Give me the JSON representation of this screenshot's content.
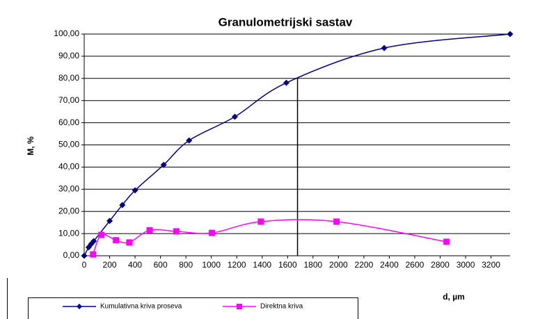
{
  "chart_data": {
    "type": "scatter",
    "title": "Granulometrijski sastav",
    "xlabel": "d, µm",
    "ylabel": "M, %",
    "xlim": [
      0,
      3350
    ],
    "ylim": [
      0,
      100
    ],
    "xticks": [
      0,
      200,
      400,
      600,
      800,
      1000,
      1200,
      1400,
      1600,
      1800,
      2000,
      2200,
      2400,
      2600,
      2800,
      3000,
      3200
    ],
    "yticks": [
      {
        "value": 0,
        "label": "0,00"
      },
      {
        "value": 10,
        "label": "10,00"
      },
      {
        "value": 20,
        "label": "20,00"
      },
      {
        "value": 30,
        "label": "30,00"
      },
      {
        "value": 40,
        "label": "40,00"
      },
      {
        "value": 50,
        "label": "50,00"
      },
      {
        "value": 60,
        "label": "60,00"
      },
      {
        "value": 70,
        "label": "70,00"
      },
      {
        "value": 80,
        "label": "80,00"
      },
      {
        "value": 90,
        "label": "90,00"
      },
      {
        "value": 100,
        "label": "100,00"
      }
    ],
    "grid": true,
    "legend": "bottom",
    "reference_line": {
      "x": 1678,
      "y": 80
    },
    "series": [
      {
        "name": "Kumulativna kriva proseva",
        "color": "#000080",
        "marker": "diamond",
        "x": [
          0,
          35,
          55,
          75,
          200,
          300,
          400,
          625,
          825,
          1185,
          1590,
          2360,
          3350
        ],
        "values": [
          0,
          3.8,
          5.3,
          6.6,
          15.7,
          22.9,
          29.5,
          41,
          52,
          62.7,
          78,
          93.7,
          100
        ]
      },
      {
        "name": "Direktna kriva",
        "color": "#ff00ff",
        "marker": "square",
        "x": [
          70,
          135,
          250,
          355,
          515,
          725,
          1005,
          1390,
          1985,
          2850
        ],
        "values": [
          0.6,
          9.4,
          7,
          6,
          11.5,
          11,
          10.3,
          15.4,
          15.4,
          6.3
        ]
      }
    ]
  }
}
